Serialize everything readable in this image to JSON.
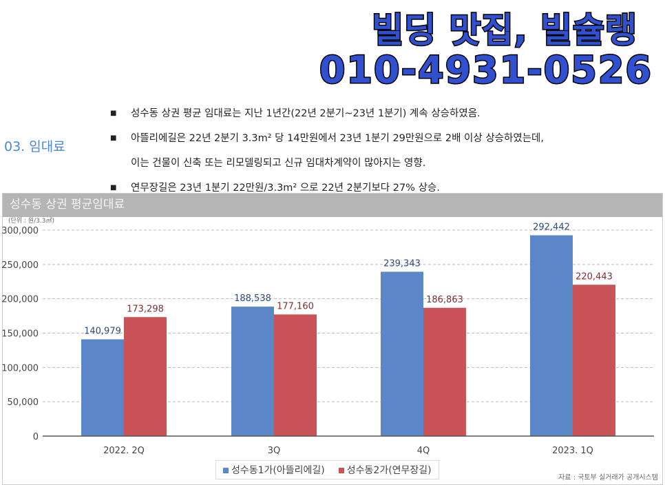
{
  "banner": {
    "line1": "빌딩 맛집, 빌슐랭",
    "line2": "010-4931-0526"
  },
  "section_title": "03. 임대료",
  "bullets": [
    "성수동 상권 평균 임대료는 지난 1년간(22년 2분기~23년 1분기) 계속 상승하였음.",
    "아뜰리에길은 22년 2분기 3.3m² 당 14만원에서 23년 1분기 29만원으로 2배 이상 상승하였는데,",
    "이는 건물이 신축 또는 리모델링되고 신규 임대차계약이 많아지는 영향.",
    "연무장길은 23년 1분기 22만원/3.3m² 으로 22년 2분기보다 27% 상승."
  ],
  "source": "자료 : 국토부 실거래가 공개시스템",
  "chart_data": {
    "type": "bar",
    "title": "성수동 상권 평균임대료",
    "unit": "(단위 : 원/3.3㎡)",
    "categories": [
      "2022. 2Q",
      "3Q",
      "4Q",
      "2023. 1Q"
    ],
    "series": [
      {
        "name": "성수동1가(아뜰리에길)",
        "color": "#5b86c8",
        "values": [
          140979,
          188538,
          239343,
          292442
        ],
        "labels": [
          "140,979",
          "188,538",
          "239,343",
          "292,442"
        ]
      },
      {
        "name": "성수동2가(연무장길)",
        "color": "#c95357",
        "values": [
          173298,
          177160,
          186863,
          220443
        ],
        "labels": [
          "173,298",
          "177,160",
          "186,863",
          "220,443"
        ]
      }
    ],
    "ylim": [
      0,
      300000
    ],
    "yticks": [
      0,
      50000,
      100000,
      150000,
      200000,
      250000,
      300000
    ],
    "ytick_labels": [
      "0",
      "50,000",
      "100,000",
      "150,000",
      "200,000",
      "250,000",
      "300,000"
    ],
    "legend": "bottom",
    "grid": true
  }
}
